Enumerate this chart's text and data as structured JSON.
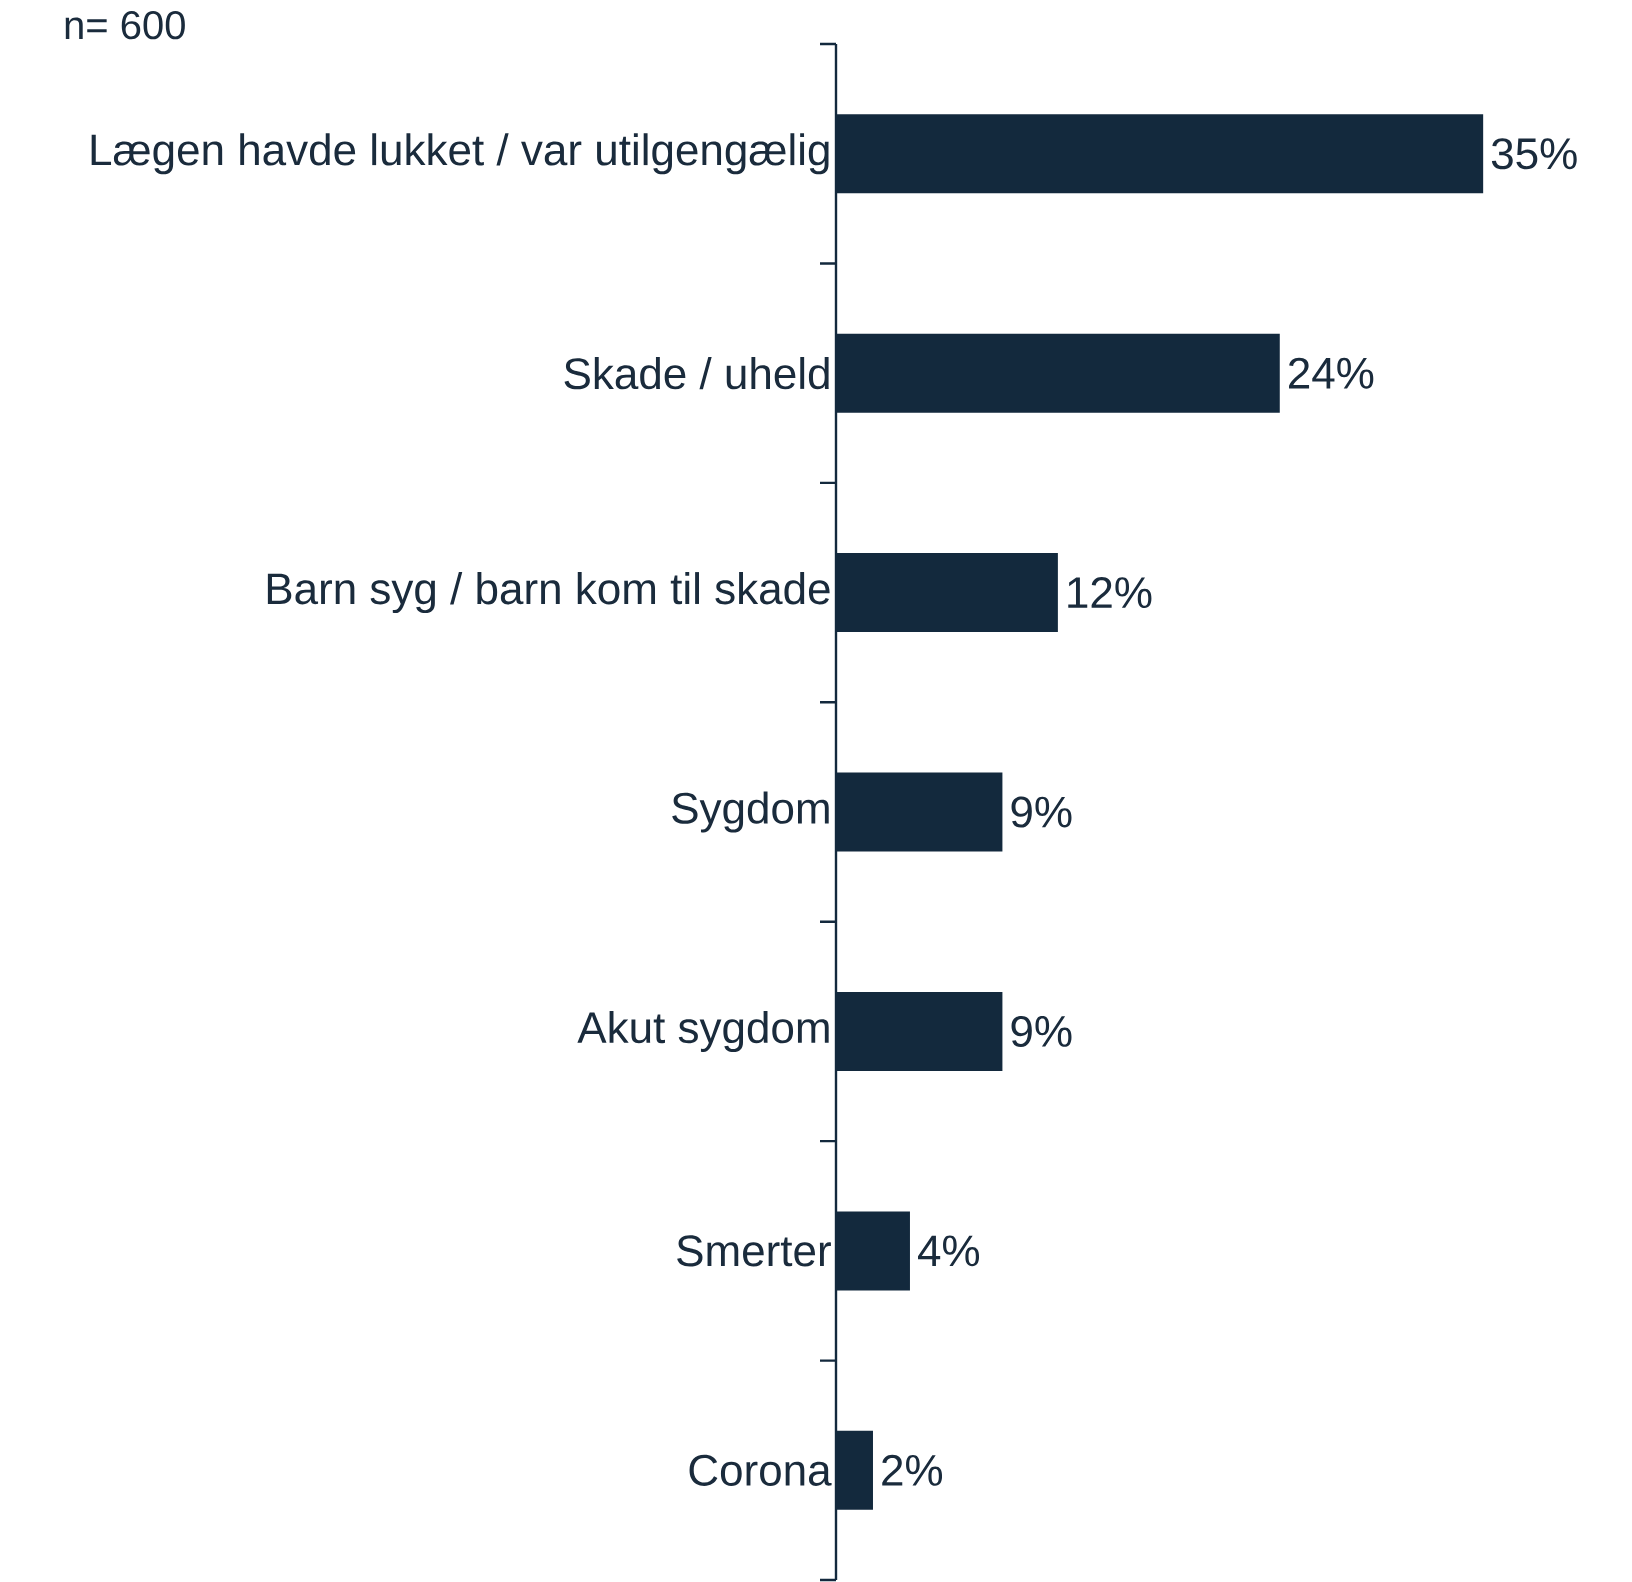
{
  "chart_data": {
    "type": "bar",
    "orientation": "horizontal",
    "annotations": [
      "n= 600"
    ],
    "categories": [
      "Lægen havde lukket / var utilgengælig",
      "Skade / uheld",
      "Barn syg / barn kom til skade",
      "Sygdom",
      "Akut sygdom",
      "Smerter",
      "Corona"
    ],
    "values": [
      35,
      24,
      12,
      9,
      9,
      4,
      2
    ],
    "value_labels": [
      "35%",
      "24%",
      "12%",
      "9%",
      "9%",
      "4%",
      "2%"
    ],
    "color": "#13293d"
  }
}
